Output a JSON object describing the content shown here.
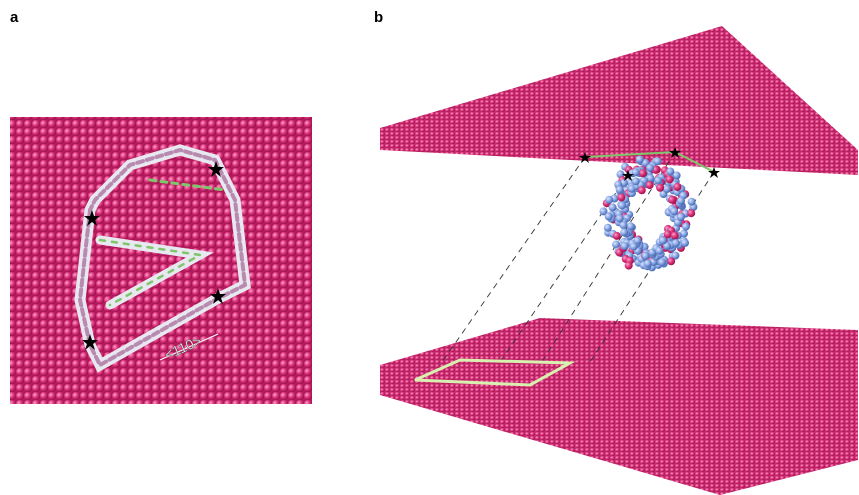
{
  "panels": [
    {
      "label": "a",
      "annotation": "<110>"
    },
    {
      "label": "b"
    }
  ]
}
